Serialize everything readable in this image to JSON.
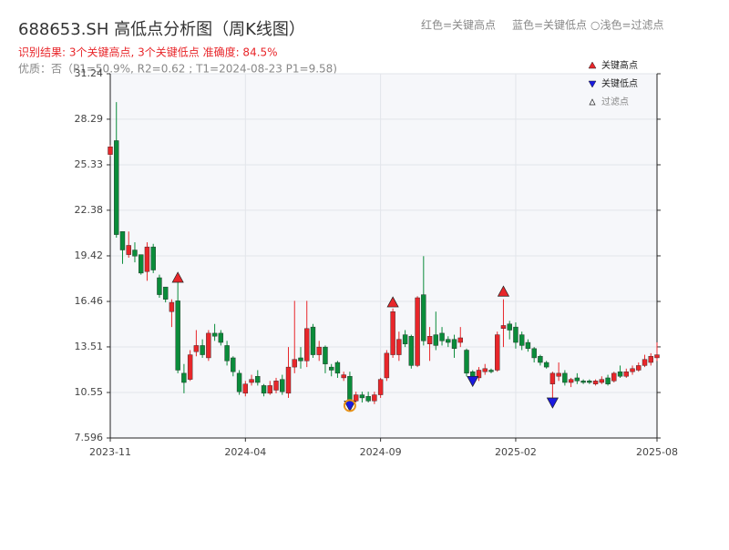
{
  "chart_data": {
    "type": "candlestick",
    "title": "688653.SH 高低点分析图（周K线图）",
    "subtitle": "识别结果: 3个关键高点, 3个关键低点  准确度: 84.5%",
    "note": "优质：否（P1=50.9%, R2=0.62 ; T1=2024-08-23 P1=9.58)",
    "header_legend": [
      "红色=关键高点",
      "蓝色=关键低点",
      "○浅色=过滤点"
    ],
    "categories": [
      "2023-11",
      null,
      null,
      null,
      null,
      null,
      null,
      null,
      null,
      null,
      null,
      null,
      null,
      null,
      null,
      null,
      null,
      null,
      null,
      null,
      null,
      null,
      "2024-04",
      null,
      null,
      null,
      null,
      null,
      null,
      null,
      null,
      null,
      null,
      null,
      null,
      null,
      null,
      null,
      null,
      null,
      null,
      null,
      null,
      null,
      "2024-09",
      null,
      null,
      null,
      null,
      null,
      null,
      null,
      null,
      null,
      null,
      null,
      null,
      null,
      null,
      null,
      null,
      null,
      null,
      null,
      null,
      null,
      "2025-02",
      null,
      null,
      null,
      null,
      null,
      null,
      null,
      null,
      null,
      null,
      null,
      null,
      null,
      null,
      null,
      null,
      null,
      null,
      null,
      null,
      null,
      null,
      "2025-08"
    ],
    "open": [
      26.0,
      26.9,
      21.0,
      19.5,
      19.8,
      19.5,
      18.4,
      20.0,
      18.0,
      17.4,
      15.8,
      16.5,
      11.8,
      11.4,
      13.2,
      13.6,
      12.8,
      14.4,
      14.4,
      13.6,
      12.8,
      11.8,
      10.5,
      11.2,
      11.6,
      11.0,
      10.5,
      10.7,
      11.4,
      10.5,
      12.2,
      12.8,
      12.6,
      14.8,
      13.0,
      13.5,
      12.2,
      12.5,
      11.5,
      11.6,
      10.0,
      10.4,
      10.3,
      10.0,
      10.4,
      11.5,
      13.0,
      13.0,
      14.3,
      14.2,
      12.3,
      16.9,
      13.7,
      14.3,
      14.4,
      14.0,
      14.0,
      13.8,
      13.3,
      11.9,
      11.5,
      11.9,
      12.0,
      12.0,
      14.7,
      15.0,
      14.8,
      14.3,
      13.8,
      13.4,
      12.9,
      12.5,
      11.1,
      11.6,
      11.8,
      11.2,
      11.5,
      11.3,
      11.3,
      11.1,
      11.2,
      11.5,
      11.3,
      11.9,
      11.6,
      11.9,
      12.0,
      12.3,
      12.5,
      12.8
    ],
    "high": [
      26.6,
      29.4,
      21.0,
      21.0,
      20.3,
      19.5,
      20.3,
      20.2,
      18.2,
      17.4,
      16.6,
      17.9,
      12.4,
      13.3,
      14.6,
      14.0,
      14.6,
      15.0,
      14.6,
      13.9,
      12.9,
      12.0,
      11.3,
      11.7,
      12.0,
      11.1,
      11.3,
      11.5,
      11.7,
      13.5,
      16.5,
      13.5,
      16.5,
      15.0,
      13.9,
      13.6,
      12.4,
      12.6,
      11.9,
      11.9,
      10.6,
      10.6,
      10.6,
      10.6,
      11.5,
      13.3,
      16.0,
      14.5,
      14.6,
      14.3,
      16.8,
      19.4,
      14.8,
      15.8,
      14.8,
      14.2,
      14.3,
      14.8,
      13.4,
      12.0,
      12.2,
      12.4,
      12.1,
      14.5,
      16.6,
      15.2,
      15.1,
      14.5,
      14.0,
      13.5,
      13.0,
      12.6,
      11.9,
      12.5,
      12.0,
      11.5,
      11.8,
      11.4,
      11.4,
      11.4,
      11.6,
      11.7,
      11.9,
      12.3,
      12.1,
      12.3,
      12.5,
      13.0,
      13.1,
      13.8
    ],
    "low": [
      25.9,
      20.6,
      18.9,
      19.3,
      19.0,
      18.2,
      17.8,
      18.3,
      16.7,
      16.4,
      14.8,
      11.8,
      10.5,
      11.3,
      12.9,
      12.8,
      12.6,
      13.9,
      13.6,
      12.3,
      11.6,
      10.4,
      10.3,
      11.0,
      11.0,
      10.3,
      10.4,
      10.5,
      10.4,
      10.2,
      11.8,
      12.1,
      12.2,
      12.8,
      12.6,
      11.8,
      11.6,
      11.5,
      11.3,
      9.6,
      9.9,
      9.9,
      9.9,
      9.8,
      10.2,
      11.3,
      12.8,
      12.6,
      13.5,
      12.1,
      12.2,
      13.6,
      12.6,
      13.3,
      13.6,
      13.5,
      12.8,
      13.5,
      11.6,
      11.4,
      11.3,
      11.7,
      11.8,
      11.9,
      13.5,
      14.0,
      13.4,
      13.3,
      13.2,
      12.5,
      12.3,
      12.1,
      10.0,
      11.3,
      11.0,
      10.9,
      11.1,
      11.1,
      11.1,
      11.0,
      11.1,
      11.0,
      11.2,
      11.5,
      11.5,
      11.7,
      11.9,
      12.2,
      12.3,
      12.6
    ],
    "close": [
      26.5,
      20.8,
      19.8,
      20.1,
      19.4,
      18.3,
      20.0,
      18.5,
      16.9,
      16.6,
      16.4,
      12.0,
      11.2,
      13.0,
      13.6,
      13.0,
      14.4,
      14.2,
      13.8,
      12.6,
      11.9,
      10.6,
      11.1,
      11.4,
      11.2,
      10.5,
      11.0,
      11.3,
      10.6,
      12.2,
      12.7,
      12.6,
      14.7,
      13.0,
      13.5,
      12.4,
      12.0,
      11.8,
      11.7,
      9.8,
      10.4,
      10.2,
      10.0,
      10.4,
      11.4,
      13.1,
      15.8,
      14.0,
      13.7,
      12.3,
      16.7,
      13.9,
      14.2,
      13.6,
      13.9,
      13.8,
      13.4,
      14.1,
      11.8,
      11.6,
      12.0,
      12.1,
      11.9,
      14.3,
      14.9,
      14.6,
      13.8,
      13.6,
      13.4,
      12.8,
      12.5,
      12.2,
      11.8,
      11.8,
      11.2,
      11.4,
      11.3,
      11.2,
      11.2,
      11.3,
      11.4,
      11.1,
      11.8,
      11.6,
      11.9,
      12.1,
      12.3,
      12.7,
      12.9,
      13.0
    ],
    "up_color": "#e8262a",
    "down_color": "#0a8c3a",
    "markers": [
      {
        "name": "关键高点",
        "color": "#e8262a",
        "shape": "up",
        "values": [
          null,
          null,
          null,
          null,
          null,
          null,
          null,
          null,
          null,
          null,
          null,
          18.0,
          null,
          null,
          null,
          null,
          null,
          null,
          null,
          null,
          null,
          null,
          null,
          null,
          null,
          null,
          null,
          null,
          null,
          null,
          null,
          null,
          null,
          null,
          null,
          null,
          null,
          null,
          null,
          null,
          null,
          null,
          null,
          null,
          null,
          null,
          16.4,
          null,
          null,
          null,
          null,
          null,
          null,
          null,
          null,
          null,
          null,
          null,
          null,
          null,
          null,
          null,
          null,
          null,
          17.1,
          null,
          null,
          null,
          null,
          null,
          null,
          null,
          null,
          null,
          null,
          null,
          null,
          null,
          null,
          null,
          null,
          null,
          null,
          null,
          null,
          null,
          null,
          null,
          null,
          null
        ]
      },
      {
        "name": "关键低点",
        "color": "#1a1ae0",
        "shape": "down",
        "values": [
          null,
          null,
          null,
          null,
          null,
          null,
          null,
          null,
          null,
          null,
          null,
          null,
          null,
          null,
          null,
          null,
          null,
          null,
          null,
          null,
          null,
          null,
          null,
          null,
          null,
          null,
          null,
          null,
          null,
          null,
          null,
          null,
          null,
          null,
          null,
          null,
          null,
          null,
          null,
          9.7,
          null,
          null,
          null,
          null,
          null,
          null,
          null,
          null,
          null,
          null,
          null,
          null,
          null,
          null,
          null,
          null,
          null,
          null,
          null,
          11.3,
          null,
          null,
          null,
          null,
          null,
          null,
          null,
          null,
          null,
          null,
          null,
          null,
          9.9,
          null,
          null,
          null,
          null,
          null,
          null,
          null,
          null,
          null,
          null,
          null,
          null,
          null,
          null,
          null,
          null,
          null
        ]
      },
      {
        "name": "过滤点",
        "color": "#e8931a",
        "shape": "ring",
        "values": [
          null,
          null,
          null,
          null,
          null,
          null,
          null,
          null,
          null,
          null,
          null,
          null,
          null,
          null,
          null,
          null,
          null,
          null,
          null,
          null,
          null,
          null,
          null,
          null,
          null,
          null,
          null,
          null,
          null,
          null,
          null,
          null,
          null,
          null,
          null,
          null,
          null,
          null,
          null,
          9.7,
          null,
          null,
          null,
          null,
          null,
          null,
          null,
          null,
          null,
          null,
          null,
          null,
          null,
          null,
          null,
          null,
          null,
          null,
          null,
          null,
          null,
          null,
          null,
          null,
          null,
          null,
          null,
          null,
          null,
          null,
          null,
          null,
          null,
          null,
          null,
          null,
          null,
          null,
          null,
          null,
          null,
          null,
          null,
          null,
          null,
          null,
          null,
          null,
          null,
          null
        ]
      }
    ],
    "ylim": [
      7.596,
      31.24
    ],
    "yticks": [
      7.596,
      10.55,
      13.51,
      16.46,
      19.42,
      22.38,
      25.33,
      28.29,
      31.24
    ],
    "grid": true
  }
}
